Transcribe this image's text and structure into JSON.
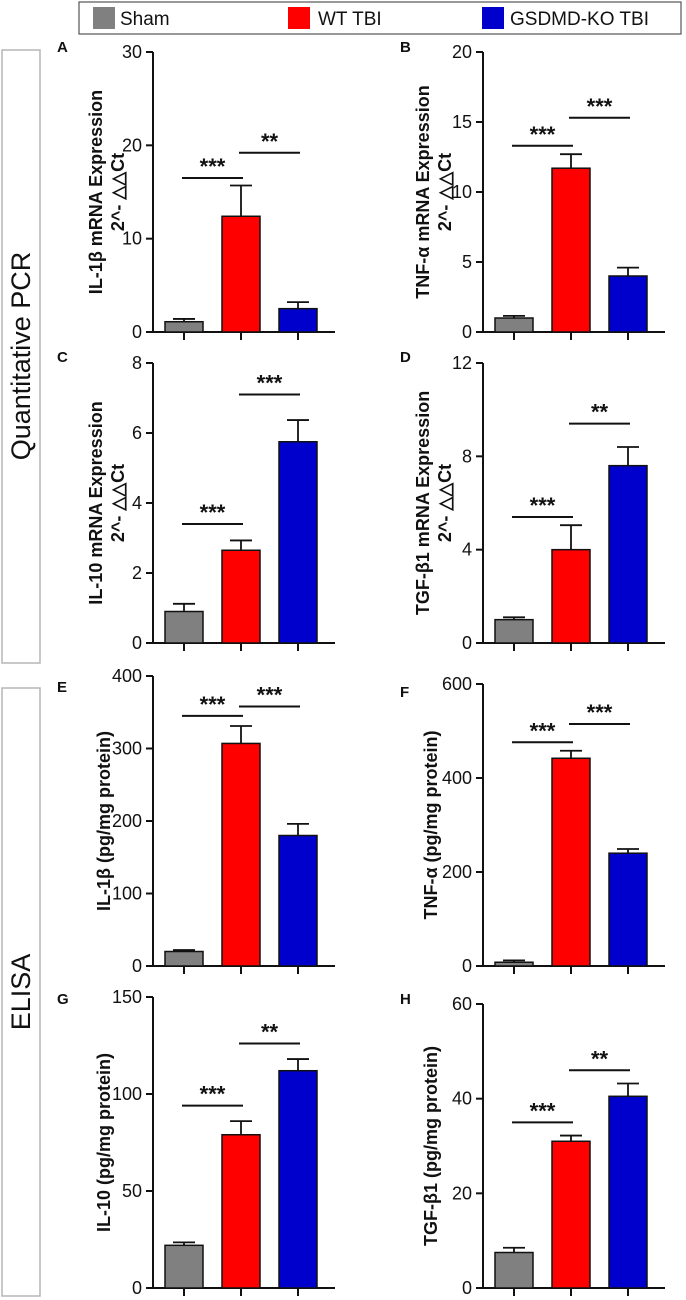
{
  "legend": [
    {
      "label": "Sham",
      "color": "#808080"
    },
    {
      "label": "WT TBI",
      "color": "#ff0000"
    },
    {
      "label": "GSDMD-KO TBI",
      "color": "#0000cc"
    }
  ],
  "sections": {
    "qpcr": "Quantitative PCR",
    "elisa": "ELISA"
  },
  "chart_data": [
    {
      "type": "bar",
      "letter": "A",
      "ylabel_lines": [
        "IL-1β mRNA Expression",
        "2^- △△Ct"
      ],
      "categories": [
        "Sham",
        "WT TBI",
        "GSDMD-KO TBI"
      ],
      "values": [
        1.1,
        12.4,
        2.5
      ],
      "errors": [
        0.3,
        3.3,
        0.7
      ],
      "ylim": [
        0,
        30
      ],
      "yticks": [
        0,
        10,
        20,
        30
      ],
      "significance": [
        {
          "from": 0,
          "to": 1,
          "label": "***",
          "y": 16.5
        },
        {
          "from": 1,
          "to": 2,
          "label": "**",
          "y": 19.2
        }
      ]
    },
    {
      "type": "bar",
      "letter": "B",
      "ylabel_lines": [
        "TNF-α mRNA Expression",
        "2^- △△Ct"
      ],
      "categories": [
        "Sham",
        "WT TBI",
        "GSDMD-KO TBI"
      ],
      "values": [
        1.0,
        11.7,
        4.0
      ],
      "errors": [
        0.15,
        1.0,
        0.6
      ],
      "ylim": [
        0,
        20
      ],
      "yticks": [
        0,
        5,
        10,
        15,
        20
      ],
      "significance": [
        {
          "from": 0,
          "to": 1,
          "label": "***",
          "y": 13.3
        },
        {
          "from": 1,
          "to": 2,
          "label": "***",
          "y": 15.3
        }
      ]
    },
    {
      "type": "bar",
      "letter": "C",
      "ylabel_lines": [
        "IL-10 mRNA Expression",
        "2^- △△Ct"
      ],
      "categories": [
        "Sham",
        "WT TBI",
        "GSDMD-KO TBI"
      ],
      "values": [
        0.9,
        2.65,
        5.75
      ],
      "errors": [
        0.22,
        0.28,
        0.62
      ],
      "ylim": [
        0,
        8
      ],
      "yticks": [
        0,
        2,
        4,
        6,
        8
      ],
      "significance": [
        {
          "from": 0,
          "to": 1,
          "label": "***",
          "y": 3.4
        },
        {
          "from": 1,
          "to": 2,
          "label": "***",
          "y": 7.1
        }
      ]
    },
    {
      "type": "bar",
      "letter": "D",
      "ylabel_lines": [
        "TGF-β1 mRNA Expression",
        "2^- △△Ct"
      ],
      "categories": [
        "Sham",
        "WT TBI",
        "GSDMD-KO TBI"
      ],
      "values": [
        1.0,
        4.0,
        7.6
      ],
      "errors": [
        0.1,
        1.05,
        0.8
      ],
      "ylim": [
        0,
        12
      ],
      "yticks": [
        0,
        4,
        8,
        12
      ],
      "significance": [
        {
          "from": 0,
          "to": 1,
          "label": "***",
          "y": 5.4
        },
        {
          "from": 1,
          "to": 2,
          "label": "**",
          "y": 9.4
        }
      ]
    },
    {
      "type": "bar",
      "letter": "E",
      "ylabel_lines": [
        "IL-1β (pg/mg protein)"
      ],
      "categories": [
        "Sham",
        "WT TBI",
        "GSDMD-KO TBI"
      ],
      "values": [
        20,
        307,
        180
      ],
      "errors": [
        2,
        24,
        16
      ],
      "ylim": [
        0,
        400
      ],
      "yticks": [
        0,
        100,
        200,
        300,
        400
      ],
      "significance": [
        {
          "from": 0,
          "to": 1,
          "label": "***",
          "y": 345
        },
        {
          "from": 1,
          "to": 2,
          "label": "***",
          "y": 358
        }
      ]
    },
    {
      "type": "bar",
      "letter": "F",
      "ylabel_lines": [
        "TNF-α (pg/mg protein)"
      ],
      "categories": [
        "Sham",
        "WT TBI",
        "GSDMD-KO TBI"
      ],
      "values": [
        8,
        442,
        240
      ],
      "errors": [
        4,
        16,
        9
      ],
      "ylim": [
        0,
        600
      ],
      "yticks": [
        0,
        200,
        400,
        600
      ],
      "significance": [
        {
          "from": 0,
          "to": 1,
          "label": "***",
          "y": 476
        },
        {
          "from": 1,
          "to": 2,
          "label": "***",
          "y": 515
        }
      ]
    },
    {
      "type": "bar",
      "letter": "G",
      "ylabel_lines": [
        "IL-10 (pg/mg protein)"
      ],
      "categories": [
        "Sham",
        "WT TBI",
        "GSDMD-KO TBI"
      ],
      "values": [
        22,
        79,
        112
      ],
      "errors": [
        1.5,
        7,
        6
      ],
      "ylim": [
        0,
        150
      ],
      "yticks": [
        0,
        50,
        100,
        150
      ],
      "significance": [
        {
          "from": 0,
          "to": 1,
          "label": "***",
          "y": 94
        },
        {
          "from": 1,
          "to": 2,
          "label": "**",
          "y": 126
        }
      ]
    },
    {
      "type": "bar",
      "letter": "H",
      "ylabel_lines": [
        "TGF-β1 (pg/mg protein)"
      ],
      "categories": [
        "Sham",
        "WT TBI",
        "GSDMD-KO TBI"
      ],
      "values": [
        7.5,
        31,
        40.5
      ],
      "errors": [
        1,
        1.2,
        2.7
      ],
      "ylim": [
        0,
        60
      ],
      "yticks": [
        0,
        20,
        40,
        60
      ],
      "significance": [
        {
          "from": 0,
          "to": 1,
          "label": "***",
          "y": 35
        },
        {
          "from": 1,
          "to": 2,
          "label": "**",
          "y": 46
        }
      ]
    }
  ]
}
